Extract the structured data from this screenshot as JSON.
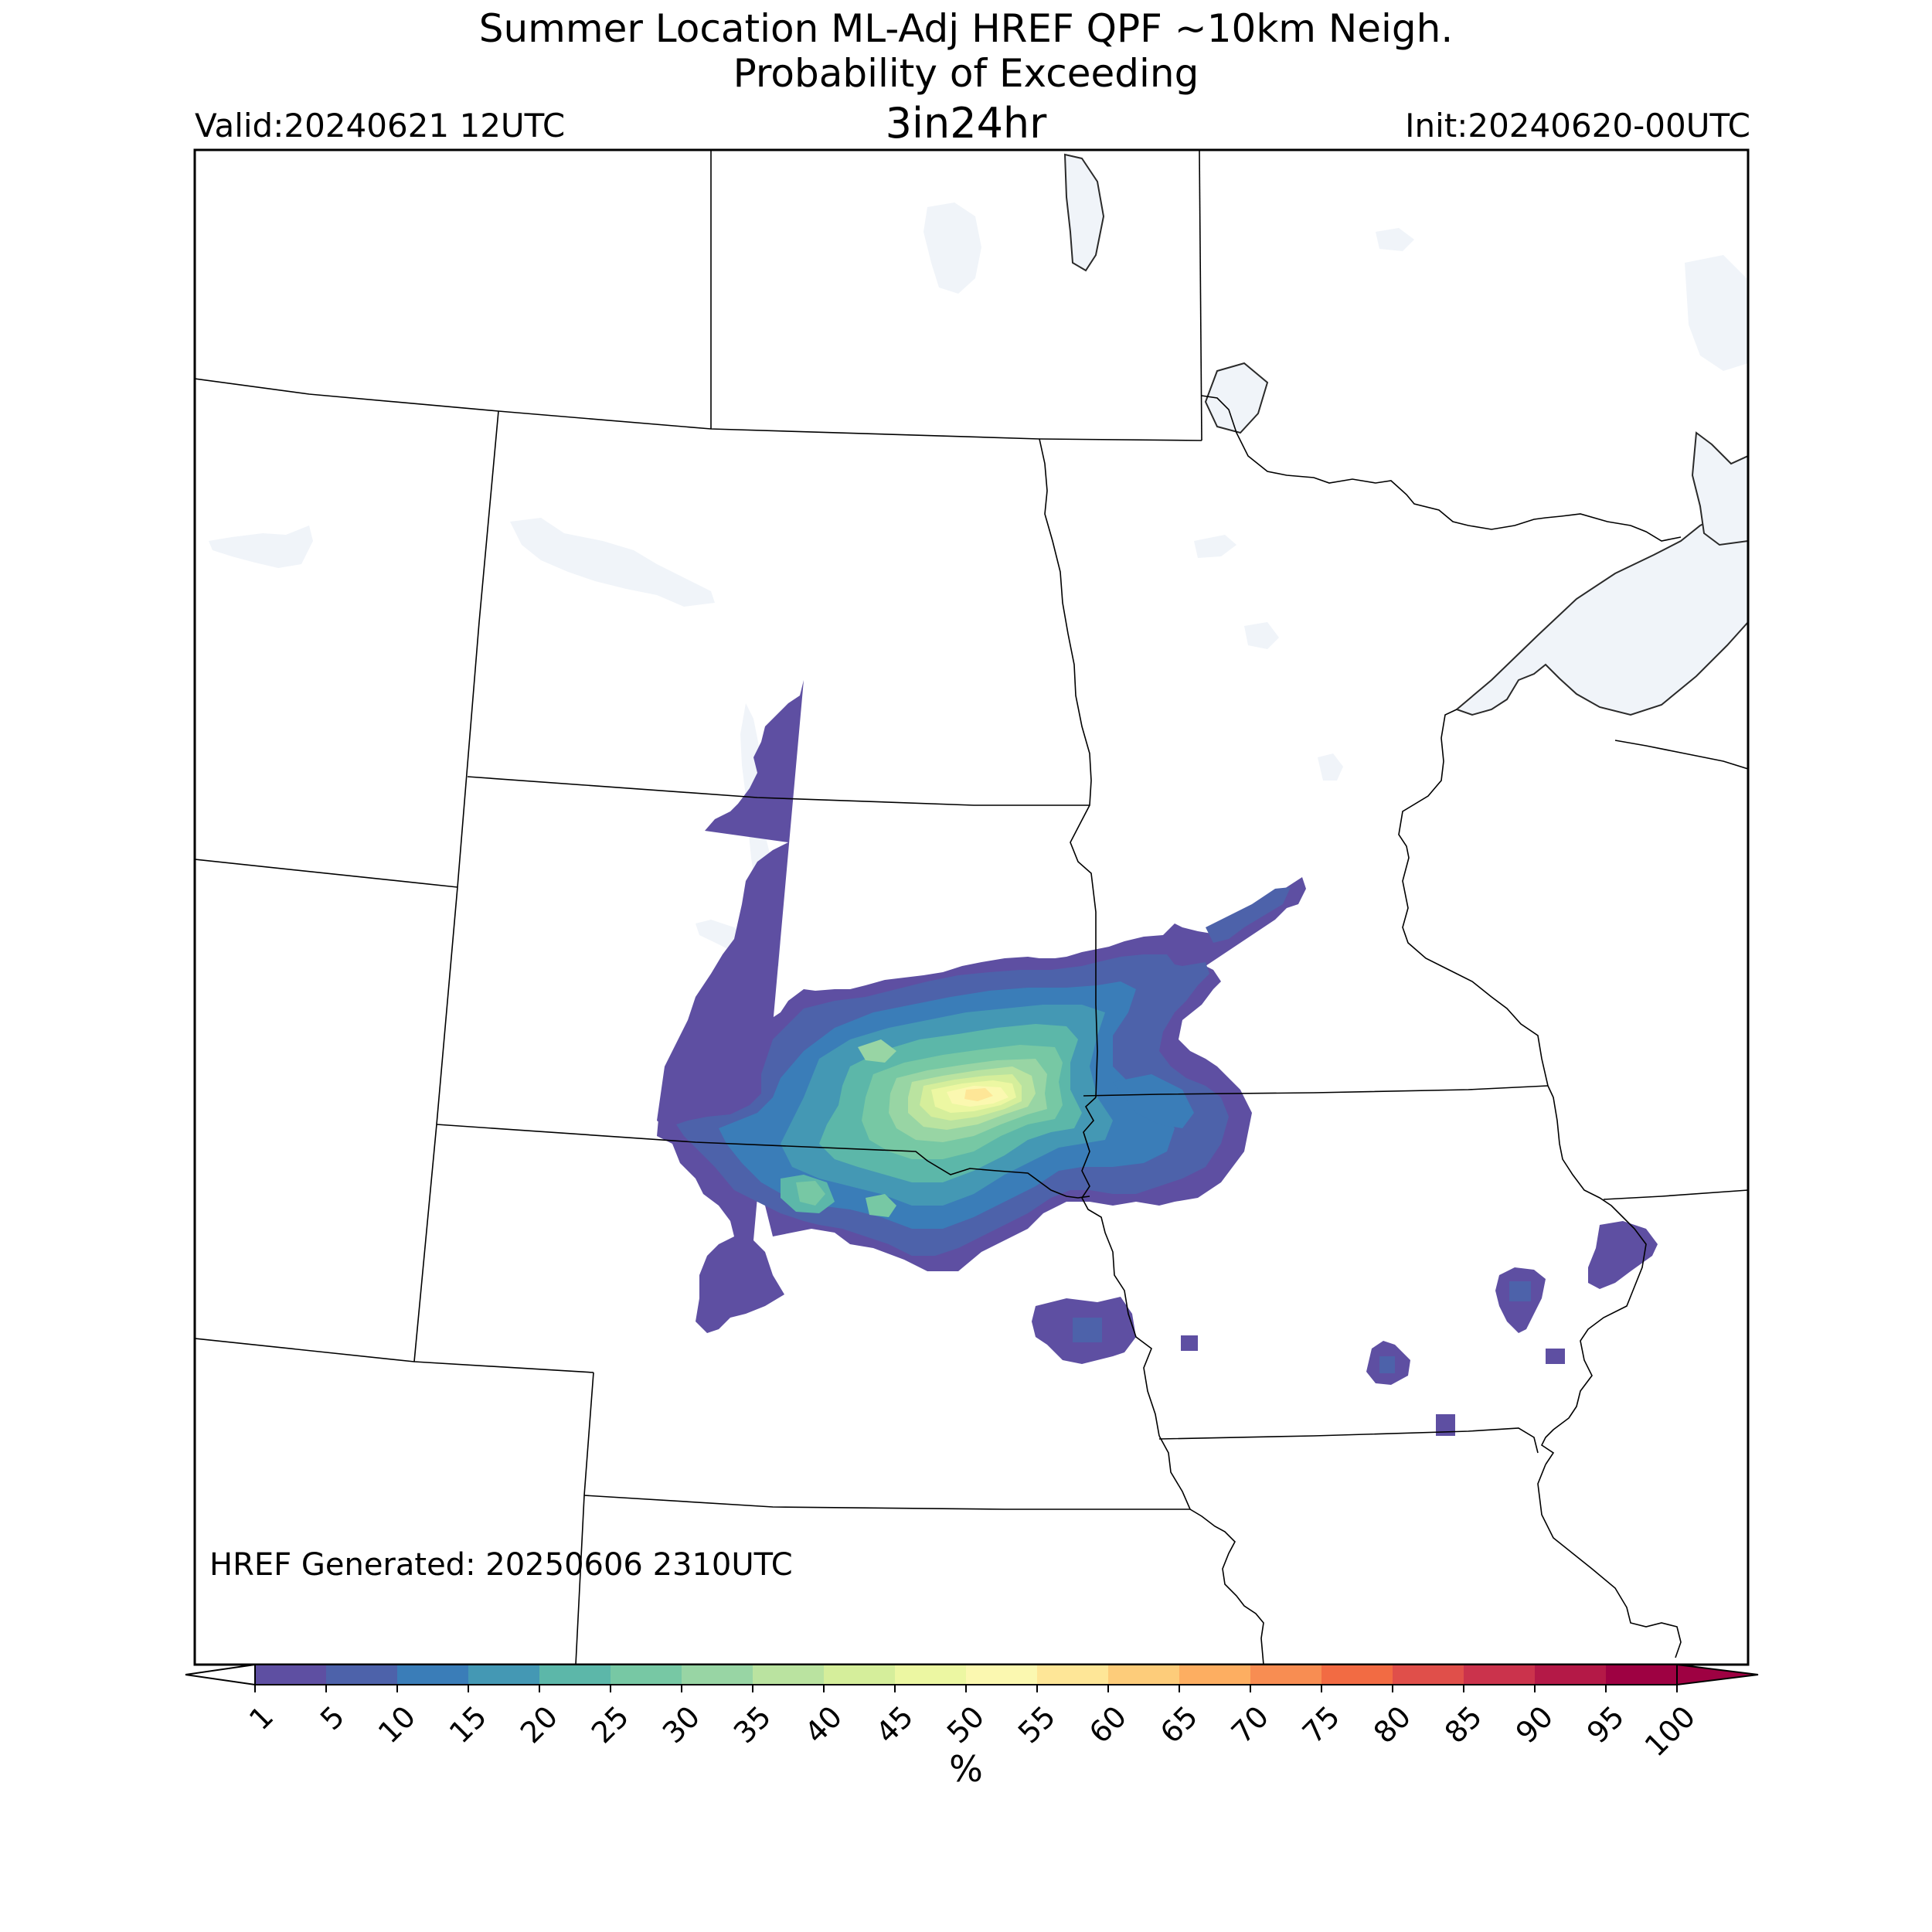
{
  "header": {
    "title_line1": "Summer Location ML-Adj HREF QPF ~10km Neigh.",
    "title_line2": "Probability of Exceeding",
    "title_line3": "3in24hr",
    "valid": "Valid:20240621 12UTC",
    "init": "Init:20240620-00UTC"
  },
  "map": {
    "footer_note": "HREF Generated: 20250606 2310UTC",
    "water_color": "#f0f4f9",
    "border_color": "#000000"
  },
  "colorbar": {
    "unit": "%",
    "ticks": [
      "1",
      "5",
      "10",
      "15",
      "20",
      "25",
      "30",
      "35",
      "40",
      "45",
      "50",
      "55",
      "60",
      "65",
      "70",
      "75",
      "80",
      "85",
      "90",
      "95",
      "100"
    ],
    "colors": [
      "#5e4fa2",
      "#4d62aa",
      "#3a7db8",
      "#4498b4",
      "#5cb7a9",
      "#77c8a4",
      "#98d5a4",
      "#bae3a0",
      "#d5ee9b",
      "#ecf7a2",
      "#fbf8b0",
      "#fee697",
      "#fdcc7a",
      "#fdae61",
      "#f88d52",
      "#f26b43",
      "#e04f4a",
      "#cb334c",
      "#b41947",
      "#9e0142"
    ],
    "under_color": "#ffffff",
    "over_color": "#9e0142"
  }
}
